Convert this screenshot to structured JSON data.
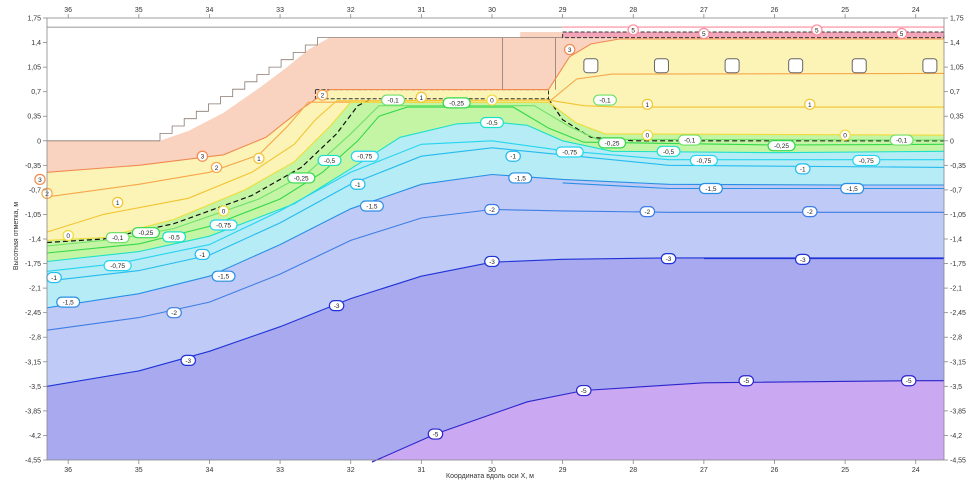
{
  "chart_data": {
    "type": "contour",
    "title": "",
    "xlabel": "Координата вдоль оси X, м",
    "ylabel": "Высотная отметка, м",
    "xlim": [
      36.3,
      23.6
    ],
    "ylim": [
      -4.55,
      1.75
    ],
    "x_ticks": [
      36,
      35,
      34,
      33,
      32,
      31,
      30,
      29,
      28,
      27,
      26,
      25,
      24
    ],
    "y_ticks": [
      1.75,
      1.4,
      1.05,
      0.7,
      0.35,
      0,
      -0.35,
      -0.7,
      -1.05,
      -1.4,
      -1.75,
      -2.1,
      -2.45,
      -2.8,
      -3.15,
      -3.5,
      -3.85,
      -4.2,
      -4.55
    ],
    "y_tick_labels": [
      "1,75",
      "1,4",
      "1,05",
      "0,7",
      "0,35",
      "0",
      "-0,35",
      "-0,7",
      "-1,05",
      "-1,4",
      "-1,75",
      "-2,1",
      "-2,45",
      "-2,8",
      "-3,15",
      "-3,5",
      "-3,85",
      "-4,2",
      "-4,55"
    ],
    "colors": {
      "warm_fill": "#f9d3c0",
      "yellow_fill": "#fbf4b6",
      "green_fill": "#c4f5a4",
      "cyan_fill": "#b5ecf6",
      "blue_fill": "#bfcaf6",
      "violet_fill": "#a8a9ee",
      "purple_fill": "#cba8f2",
      "pink_fill": "#f2a5b8"
    },
    "regions": [
      {
        "name": "embankment-slope",
        "points": [
          [
            34.7,
            0
          ],
          [
            34.3,
            0.14
          ],
          [
            33.8,
            0.4
          ],
          [
            33.3,
            0.75
          ],
          [
            32.9,
            1.05
          ],
          [
            32.6,
            1.3
          ],
          [
            32.3,
            1.47
          ],
          [
            29.6,
            1.47
          ],
          [
            29.6,
            0
          ],
          [
            23.6,
            0
          ],
          [
            23.6,
            1.55
          ],
          [
            36.3,
            1.55
          ],
          [
            36.3,
            0
          ]
        ]
      },
      {
        "name": "trench-box",
        "points": [
          [
            32.5,
            0.73
          ],
          [
            29.2,
            0.73
          ],
          [
            29.2,
            0.6
          ],
          [
            32.5,
            0.6
          ]
        ]
      },
      {
        "name": "right-pink-band",
        "points": [
          [
            29.0,
            1.55
          ],
          [
            23.6,
            1.55
          ],
          [
            23.6,
            1.47
          ],
          [
            29.0,
            1.47
          ]
        ]
      }
    ],
    "series": [
      {
        "name": "5",
        "color": "#ff8a9c",
        "label_values": [
          "5",
          "5",
          "5",
          "5"
        ],
        "label_at": [
          [
            28.0,
            1.58
          ],
          [
            27.0,
            1.53
          ],
          [
            25.4,
            1.58
          ],
          [
            24.2,
            1.53
          ]
        ],
        "points": [
          [
            29.0,
            1.62
          ],
          [
            26.0,
            1.62
          ],
          [
            23.6,
            1.62
          ]
        ]
      },
      {
        "name": "3",
        "color": "#f28a50",
        "label_values": [
          "3",
          "3",
          "3"
        ],
        "label_at": [
          [
            36.4,
            -0.55
          ],
          [
            34.1,
            -0.22
          ],
          [
            28.9,
            1.3
          ]
        ],
        "points": [
          [
            36.3,
            -0.45
          ],
          [
            35.0,
            -0.35
          ],
          [
            33.8,
            -0.2
          ],
          [
            33.2,
            0.05
          ],
          [
            32.7,
            0.45
          ],
          [
            32.3,
            0.73
          ],
          [
            29.2,
            0.73
          ],
          [
            28.9,
            1.2
          ],
          [
            28.6,
            1.38
          ],
          [
            28.2,
            1.45
          ],
          [
            23.6,
            1.45
          ]
        ]
      },
      {
        "name": "2",
        "color": "#f7a64a",
        "label_values": [
          "2",
          "2",
          "2"
        ],
        "label_at": [
          [
            36.3,
            -0.75
          ],
          [
            33.9,
            -0.38
          ],
          [
            32.4,
            0.65
          ]
        ],
        "points": [
          [
            36.3,
            -0.8
          ],
          [
            35.0,
            -0.62
          ],
          [
            34.0,
            -0.45
          ],
          [
            33.3,
            -0.2
          ],
          [
            32.9,
            0.2
          ],
          [
            32.6,
            0.55
          ],
          [
            29.2,
            0.55
          ],
          [
            28.8,
            0.88
          ],
          [
            28.3,
            0.95
          ],
          [
            23.6,
            0.96
          ]
        ]
      },
      {
        "name": "1",
        "color": "#f3c431",
        "label_values": [
          "1",
          "1",
          "1",
          "1",
          "1"
        ],
        "label_at": [
          [
            35.3,
            -0.88
          ],
          [
            33.3,
            -0.25
          ],
          [
            31.0,
            0.62
          ],
          [
            27.8,
            0.52
          ],
          [
            25.5,
            0.52
          ]
        ],
        "points": [
          [
            36.3,
            -1.3
          ],
          [
            35.5,
            -1.05
          ],
          [
            34.3,
            -0.82
          ],
          [
            33.4,
            -0.45
          ],
          [
            32.8,
            -0.05
          ],
          [
            32.5,
            0.3
          ],
          [
            32.2,
            0.57
          ],
          [
            29.2,
            0.58
          ],
          [
            28.7,
            0.5
          ],
          [
            28.2,
            0.48
          ],
          [
            23.6,
            0.48
          ]
        ]
      },
      {
        "name": "0",
        "color": "#f0dc3c",
        "label_values": [
          "0",
          "0",
          "0",
          "0",
          "0"
        ],
        "label_at": [
          [
            36.0,
            -1.35
          ],
          [
            33.8,
            -1.0
          ],
          [
            30.0,
            0.58
          ],
          [
            27.8,
            0.08
          ],
          [
            25.0,
            0.08
          ]
        ],
        "points": [
          [
            36.3,
            -1.42
          ],
          [
            35.5,
            -1.38
          ],
          [
            34.5,
            -1.12
          ],
          [
            33.5,
            -0.7
          ],
          [
            32.8,
            -0.3
          ],
          [
            32.3,
            0.2
          ],
          [
            32.0,
            0.55
          ],
          [
            29.2,
            0.55
          ],
          [
            28.8,
            0.25
          ],
          [
            28.4,
            0.1
          ],
          [
            23.6,
            0.08
          ]
        ]
      },
      {
        "name": "-0.1",
        "color": "#71e06a",
        "label_values": [
          "-0,1",
          "-0,1",
          "-0,1",
          "-0,1",
          "-0,1"
        ],
        "label_at": [
          [
            35.3,
            -1.38
          ],
          [
            31.4,
            0.58
          ],
          [
            28.4,
            0.58
          ],
          [
            27.2,
            0.01
          ],
          [
            24.2,
            0.01
          ]
        ],
        "points": [
          [
            36.3,
            -1.5
          ],
          [
            35.3,
            -1.4
          ],
          [
            34.5,
            -1.25
          ],
          [
            33.3,
            -0.83
          ],
          [
            32.6,
            -0.45
          ],
          [
            32.0,
            0.1
          ],
          [
            31.6,
            0.5
          ],
          [
            29.4,
            0.5
          ],
          [
            28.9,
            0.2
          ],
          [
            28.5,
            0.02
          ],
          [
            23.6,
            0.01
          ]
        ]
      },
      {
        "name": "-0.25",
        "color": "#33d94a",
        "label_values": [
          "-0,25",
          "-0,25",
          "-0,25",
          "-0,25",
          "-0,25"
        ],
        "label_at": [
          [
            34.9,
            -1.31
          ],
          [
            32.7,
            -0.53
          ],
          [
            30.5,
            0.54
          ],
          [
            28.3,
            -0.03
          ],
          [
            25.9,
            -0.07
          ]
        ],
        "points": [
          [
            36.3,
            -1.6
          ],
          [
            35.0,
            -1.47
          ],
          [
            34.0,
            -1.22
          ],
          [
            33.0,
            -0.83
          ],
          [
            32.4,
            -0.45
          ],
          [
            31.9,
            0.0
          ],
          [
            31.6,
            0.35
          ],
          [
            31.2,
            0.48
          ],
          [
            29.7,
            0.48
          ],
          [
            29.2,
            0.18
          ],
          [
            28.7,
            -0.02
          ],
          [
            26.0,
            -0.06
          ],
          [
            23.6,
            -0.05
          ]
        ]
      },
      {
        "name": "-0.5",
        "color": "#1de0c8",
        "label_values": [
          "-0,5",
          "-0,5",
          "-0,5",
          "-0,5"
        ],
        "label_at": [
          [
            34.5,
            -1.37
          ],
          [
            32.3,
            -0.28
          ],
          [
            30.0,
            0.26
          ],
          [
            27.5,
            -0.15
          ]
        ],
        "points": [
          [
            36.3,
            -1.72
          ],
          [
            35.0,
            -1.58
          ],
          [
            34.0,
            -1.36
          ],
          [
            32.8,
            -0.9
          ],
          [
            32.0,
            -0.4
          ],
          [
            31.3,
            0.05
          ],
          [
            30.5,
            0.24
          ],
          [
            30.0,
            0.27
          ],
          [
            29.5,
            0.22
          ],
          [
            29.0,
            0.0
          ],
          [
            28.3,
            -0.15
          ],
          [
            26.0,
            -0.17
          ],
          [
            23.6,
            -0.15
          ]
        ]
      },
      {
        "name": "-0.75",
        "color": "#26d4f0",
        "label_values": [
          "-0,75",
          "-0,75",
          "-0,75",
          "-0,75",
          "-0,75",
          "-0,75"
        ],
        "label_at": [
          [
            35.3,
            -1.78
          ],
          [
            33.8,
            -1.2
          ],
          [
            31.8,
            -0.22
          ],
          [
            28.9,
            -0.16
          ],
          [
            27.0,
            -0.28
          ],
          [
            24.7,
            -0.28
          ]
        ],
        "points": [
          [
            36.3,
            -1.86
          ],
          [
            35.3,
            -1.75
          ],
          [
            34.0,
            -1.48
          ],
          [
            33.0,
            -1.0
          ],
          [
            32.0,
            -0.45
          ],
          [
            31.0,
            -0.05
          ],
          [
            30.0,
            0.0
          ],
          [
            29.0,
            -0.14
          ],
          [
            27.5,
            -0.27
          ],
          [
            23.6,
            -0.27
          ]
        ]
      },
      {
        "name": "-1",
        "color": "#25bbee",
        "label_values": [
          "-1",
          "-1",
          "-1",
          "-1",
          "-1"
        ],
        "label_at": [
          [
            36.2,
            -1.95
          ],
          [
            34.1,
            -1.62
          ],
          [
            31.9,
            -0.62
          ],
          [
            29.7,
            -0.22
          ],
          [
            25.6,
            -0.4
          ]
        ],
        "points": [
          [
            36.3,
            -2.0
          ],
          [
            35.0,
            -1.85
          ],
          [
            34.0,
            -1.63
          ],
          [
            33.0,
            -1.17
          ],
          [
            32.0,
            -0.62
          ],
          [
            31.0,
            -0.22
          ],
          [
            30.0,
            -0.1
          ],
          [
            29.0,
            -0.2
          ],
          [
            27.5,
            -0.35
          ],
          [
            23.6,
            -0.38
          ]
        ]
      },
      {
        "name": "-1.5",
        "color": "#2a8fe4",
        "label_values": [
          "-1,5",
          "-1,5",
          "-1,5",
          "-1,5"
        ],
        "label_at": [
          [
            36.0,
            -2.3
          ],
          [
            33.8,
            -1.93
          ],
          [
            31.7,
            -0.93
          ],
          [
            29.6,
            -0.53
          ]
        ],
        "points": [
          [
            36.3,
            -2.38
          ],
          [
            35.0,
            -2.18
          ],
          [
            34.0,
            -1.93
          ],
          [
            33.0,
            -1.48
          ],
          [
            32.0,
            -0.97
          ],
          [
            31.0,
            -0.62
          ],
          [
            30.0,
            -0.48
          ],
          [
            29.0,
            -0.55
          ],
          [
            27.5,
            -0.62
          ],
          [
            25.0,
            -0.63
          ],
          [
            23.6,
            -0.63
          ]
        ]
      },
      {
        "name": "-1.5b",
        "color": "#2a8fe4",
        "label_values": [
          "-1,5",
          "-1,5"
        ],
        "label_at": [
          [
            26.9,
            -0.68
          ],
          [
            24.9,
            -0.68
          ]
        ],
        "points": [
          [
            29.0,
            -0.6
          ],
          [
            27.5,
            -0.68
          ],
          [
            23.6,
            -0.68
          ]
        ]
      },
      {
        "name": "-2",
        "color": "#3f7de6",
        "label_values": [
          "-2",
          "-2",
          "-2",
          "-2"
        ],
        "label_at": [
          [
            34.5,
            -2.45
          ],
          [
            30.0,
            -0.98
          ],
          [
            27.8,
            -1.01
          ],
          [
            25.5,
            -1.01
          ]
        ],
        "points": [
          [
            36.3,
            -2.7
          ],
          [
            35.0,
            -2.52
          ],
          [
            34.0,
            -2.3
          ],
          [
            33.0,
            -1.9
          ],
          [
            32.0,
            -1.42
          ],
          [
            31.0,
            -1.1
          ],
          [
            30.0,
            -0.98
          ],
          [
            29.0,
            -1.0
          ],
          [
            27.5,
            -1.02
          ],
          [
            23.6,
            -1.02
          ]
        ]
      },
      {
        "name": "-3",
        "color": "#1f33d8",
        "label_values": [
          "-3",
          "-3",
          "-3",
          "-3"
        ],
        "label_at": [
          [
            34.3,
            -3.13
          ],
          [
            32.2,
            -2.35
          ],
          [
            30.0,
            -1.72
          ],
          [
            27.5,
            -1.68
          ]
        ],
        "points": [
          [
            36.3,
            -3.5
          ],
          [
            35.0,
            -3.28
          ],
          [
            34.0,
            -3.0
          ],
          [
            33.0,
            -2.65
          ],
          [
            32.0,
            -2.25
          ],
          [
            31.0,
            -1.93
          ],
          [
            30.0,
            -1.73
          ],
          [
            29.0,
            -1.69
          ],
          [
            27.5,
            -1.67
          ],
          [
            23.6,
            -1.67
          ]
        ]
      },
      {
        "name": "-3r",
        "color": "#1f33d8",
        "label_values": [
          "-3"
        ],
        "label_at": [
          [
            25.6,
            -1.69
          ]
        ],
        "points": [
          [
            27.0,
            -1.68
          ],
          [
            23.6,
            -1.68
          ]
        ]
      },
      {
        "name": "-5",
        "color": "#2b25cc",
        "label_values": [
          "-5",
          "-5",
          "-5",
          "-5"
        ],
        "label_at": [
          [
            30.8,
            -4.18
          ],
          [
            28.7,
            -3.56
          ],
          [
            26.4,
            -3.42
          ],
          [
            24.1,
            -3.42
          ]
        ],
        "points": [
          [
            31.7,
            -4.58
          ],
          [
            30.8,
            -4.18
          ],
          [
            29.5,
            -3.72
          ],
          [
            28.7,
            -3.56
          ],
          [
            27.0,
            -3.45
          ],
          [
            24.0,
            -3.42
          ],
          [
            23.6,
            -3.42
          ]
        ]
      }
    ]
  }
}
